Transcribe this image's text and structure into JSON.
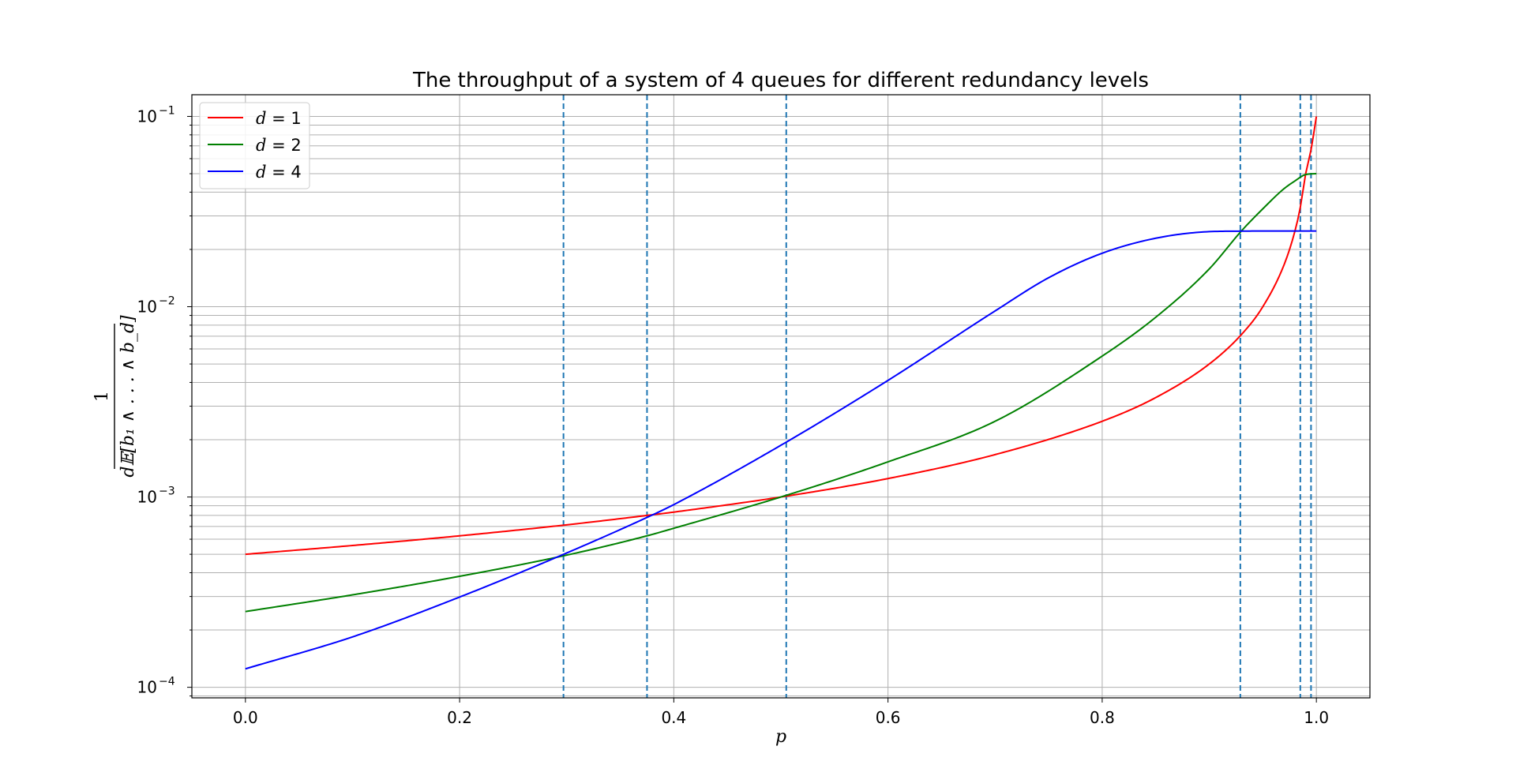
{
  "chart_data": {
    "type": "line",
    "title": "The throughput of a system of 4 queues for different redundancy levels",
    "xlabel": "p",
    "ylabel_numerator": "1",
    "ylabel_denominator": "d𝔼[b₁ ∧ . . . ∧ b_d]",
    "xlim": [
      -0.05,
      1.05
    ],
    "ylim": [
      8.8e-05,
      0.13
    ],
    "yscale": "log",
    "grid": true,
    "legend_position": "upper left",
    "x_ticks": [
      0.0,
      0.2,
      0.4,
      0.6,
      0.8,
      1.0
    ],
    "x_tick_labels": [
      "0.0",
      "0.2",
      "0.4",
      "0.6",
      "0.8",
      "1.0"
    ],
    "y_ticks": [
      {
        "value": 0.0001,
        "base": "10",
        "exp": "−4"
      },
      {
        "value": 0.001,
        "base": "10",
        "exp": "−3"
      },
      {
        "value": 0.01,
        "base": "10",
        "exp": "−2"
      },
      {
        "value": 0.1,
        "base": "10",
        "exp": "−1"
      }
    ],
    "vlines": [
      0.297,
      0.375,
      0.505,
      0.929,
      0.985,
      0.995
    ],
    "vline_color": "#1f77b4",
    "series": [
      {
        "name_var": "d",
        "name_val": "1",
        "color": "#ff0000",
        "x": [
          0.0,
          0.1,
          0.2,
          0.3,
          0.375,
          0.4,
          0.5,
          0.6,
          0.7,
          0.8,
          0.85,
          0.9,
          0.93,
          0.95,
          0.97,
          0.98,
          0.985,
          0.99,
          0.995,
          1.0
        ],
        "y": [
          0.0005,
          0.000556,
          0.000625,
          0.000714,
          0.0008,
          0.000833,
          0.001,
          0.00125,
          0.00167,
          0.0025,
          0.00333,
          0.005,
          0.00714,
          0.01,
          0.0167,
          0.025,
          0.0333,
          0.05,
          0.0667,
          0.1
        ]
      },
      {
        "name_var": "d",
        "name_val": "2",
        "color": "#008000",
        "x": [
          0.0,
          0.1,
          0.2,
          0.3,
          0.375,
          0.4,
          0.5,
          0.6,
          0.7,
          0.8,
          0.85,
          0.9,
          0.93,
          0.95,
          0.97,
          0.98,
          0.99,
          1.0
        ],
        "y": [
          0.00025,
          0.000306,
          0.000383,
          0.000495,
          0.000625,
          0.000685,
          0.001,
          0.00153,
          0.0025,
          0.0055,
          0.0088,
          0.0158,
          0.025,
          0.0327,
          0.0418,
          0.0458,
          0.0495,
          0.05
        ]
      },
      {
        "name_var": "d",
        "name_val": "4",
        "color": "#0000ff",
        "x": [
          0.0,
          0.1,
          0.2,
          0.3,
          0.375,
          0.4,
          0.5,
          0.6,
          0.7,
          0.75,
          0.8,
          0.85,
          0.9,
          0.93,
          0.95,
          1.0
        ],
        "y": [
          0.000125,
          0.000184,
          0.000298,
          0.000508,
          0.000781,
          0.000912,
          0.00187,
          0.0041,
          0.0095,
          0.0142,
          0.0191,
          0.0229,
          0.0248,
          0.02495,
          0.025,
          0.025
        ]
      }
    ]
  }
}
